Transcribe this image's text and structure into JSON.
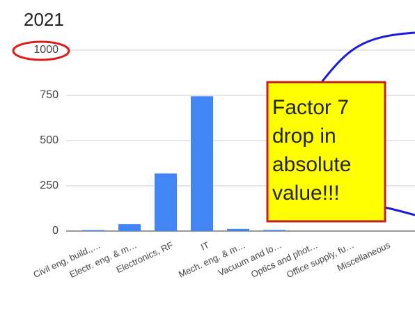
{
  "chart_data": {
    "type": "bar",
    "title": "2021",
    "categories": [
      "Civil eng, build.,…",
      "Electr. eng. & m…",
      "Electronics, RF",
      "IT",
      "Mech. eng. & m…",
      "Vacuum and lo…",
      "Optics and phot…",
      "Office supply, fu…",
      "Miscellaneous"
    ],
    "values": [
      5,
      38,
      318,
      745,
      12,
      6,
      0,
      0,
      0
    ],
    "color": "#4285f4",
    "ylim": [
      0,
      1000
    ],
    "yticks": [
      0,
      250,
      500,
      750,
      1000
    ],
    "grid": true,
    "annotations": [
      "Factor 7",
      "drop in",
      "absolute",
      "value!!!"
    ]
  }
}
